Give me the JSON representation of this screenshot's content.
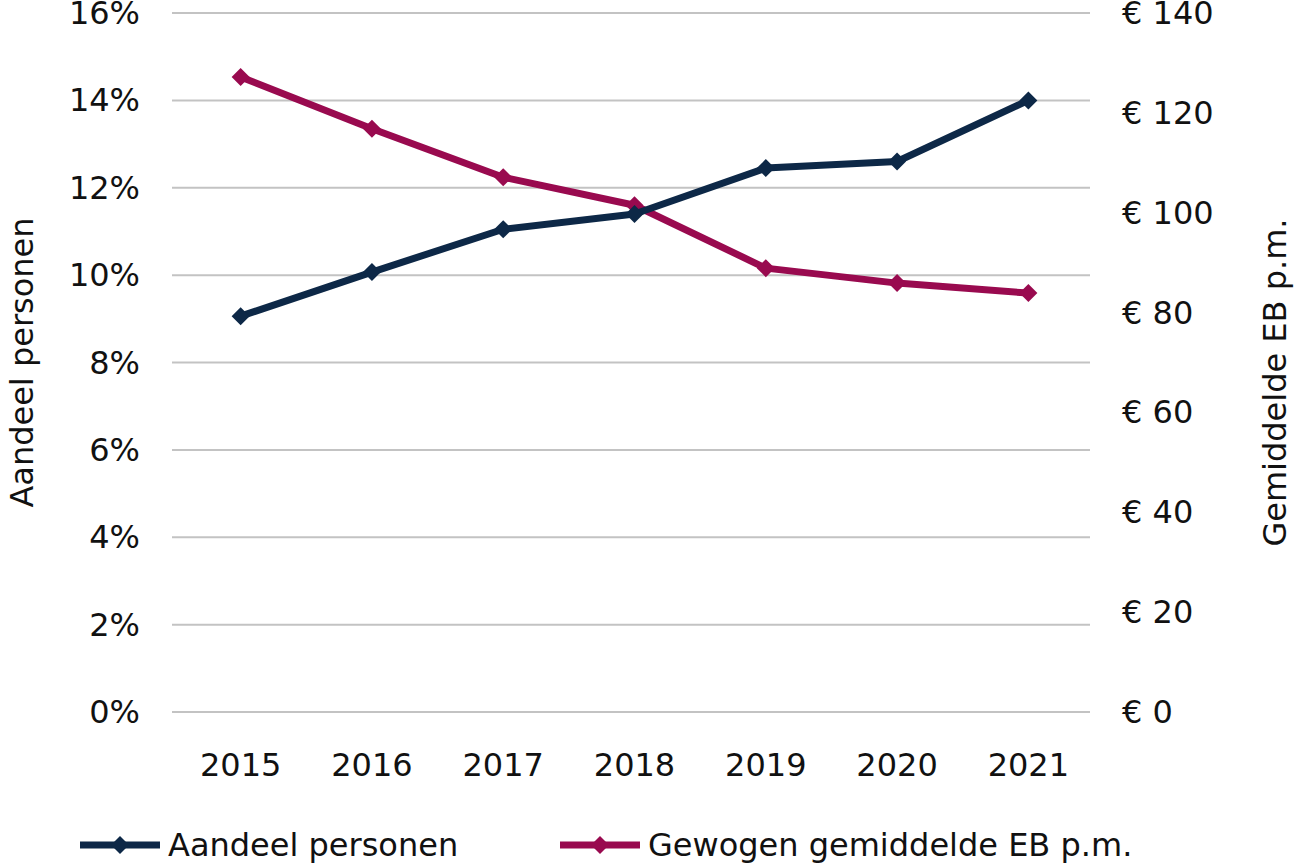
{
  "chart_data": {
    "type": "line",
    "categories": [
      "2015",
      "2016",
      "2017",
      "2018",
      "2019",
      "2020",
      "2021"
    ],
    "y_label": "Aandeel personen",
    "y2_label": "Gemiddelde EB p.m.",
    "ylim": [
      0,
      16
    ],
    "yticks": [
      {
        "value": 0,
        "label": "0%"
      },
      {
        "value": 2,
        "label": "2%"
      },
      {
        "value": 4,
        "label": "4%"
      },
      {
        "value": 6,
        "label": "6%"
      },
      {
        "value": 8,
        "label": "8%"
      },
      {
        "value": 10,
        "label": "10%"
      },
      {
        "value": 12,
        "label": "12%"
      },
      {
        "value": 14,
        "label": "14%"
      },
      {
        "value": 16,
        "label": "16%"
      }
    ],
    "y2lim": [
      0,
      140
    ],
    "y2ticks": [
      {
        "value": 0,
        "label": "€ 0"
      },
      {
        "value": 20,
        "label": "€ 20"
      },
      {
        "value": 40,
        "label": "€ 40"
      },
      {
        "value": 60,
        "label": "€ 60"
      },
      {
        "value": 80,
        "label": "€ 80"
      },
      {
        "value": 100,
        "label": "€ 100"
      },
      {
        "value": 120,
        "label": "€ 120"
      },
      {
        "value": 140,
        "label": "€ 140"
      }
    ],
    "grid": true,
    "legend": "bottom",
    "series": [
      {
        "name": "Aandeel personen",
        "color": "#0d2847",
        "marker": "diamond",
        "values": [
          9.06,
          10.07,
          11.05,
          11.4,
          12.45,
          12.6,
          14.0
        ]
      },
      {
        "name": "Gewogen gemiddelde EB p.m.",
        "color": "#990a4f",
        "marker": "diamond",
        "axis": "y2",
        "values": [
          127.2,
          116.8,
          107.1,
          101.5,
          88.9,
          85.9,
          83.9
        ]
      }
    ]
  }
}
